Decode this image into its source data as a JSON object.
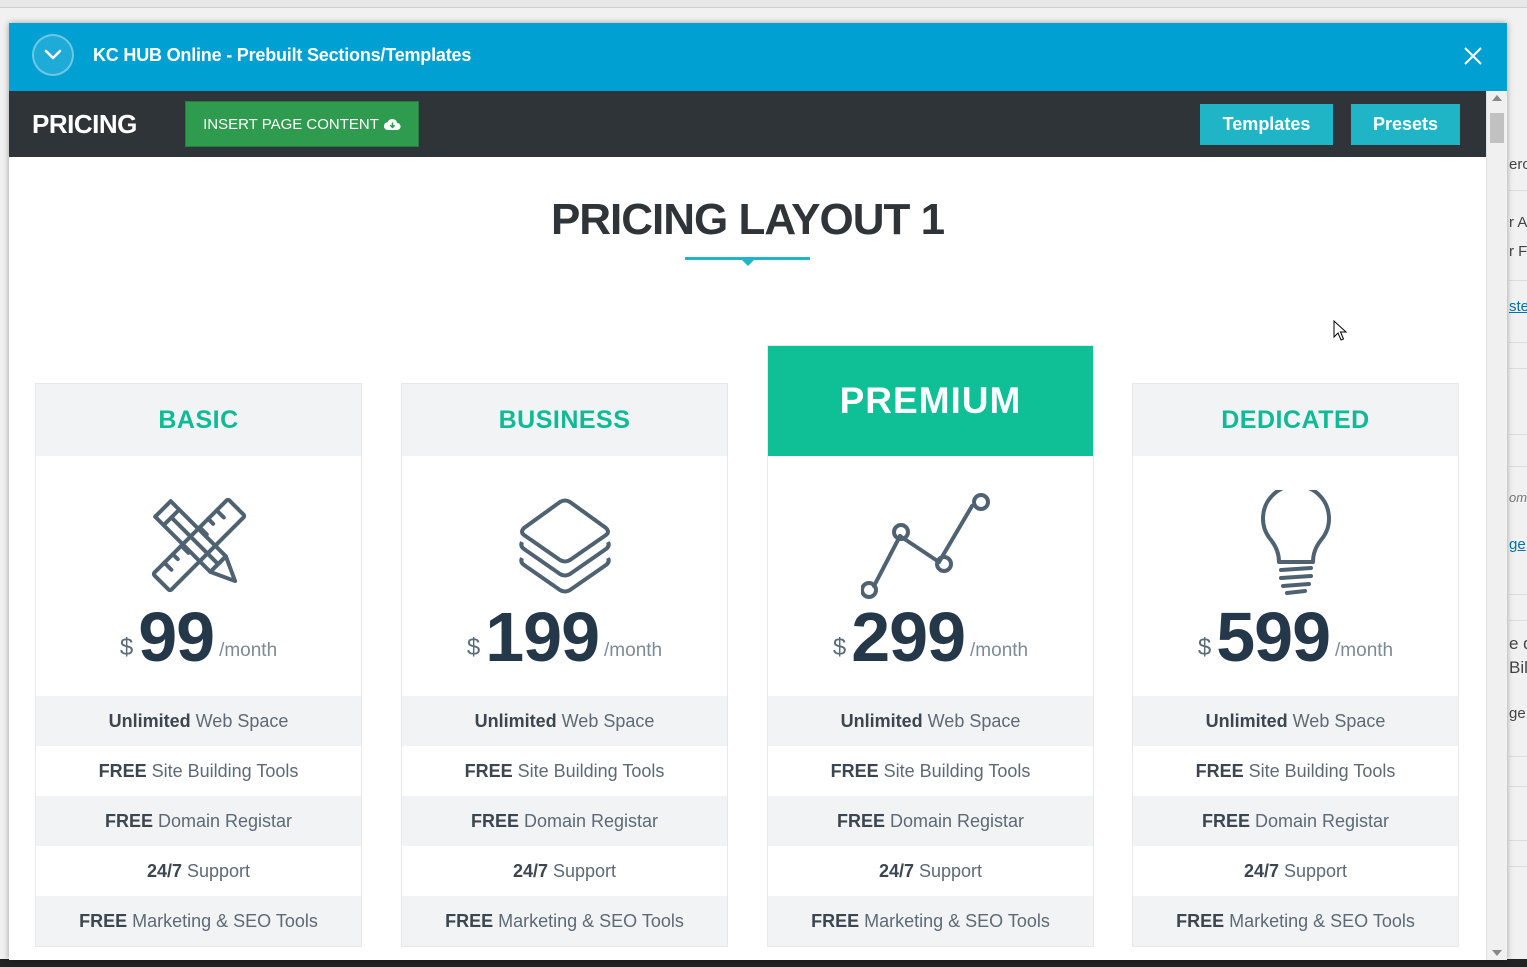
{
  "background": {
    "fragments": [
      "erc",
      "r A",
      "r Fo",
      "ste",
      "om",
      "ge",
      "e d",
      "Bil",
      "ge"
    ]
  },
  "modal": {
    "title": "KC HUB Online - Prebuilt Sections/Templates",
    "collapse_icon": "chevron-down-icon",
    "close_icon": "close-icon",
    "header_color": "#00a0d2"
  },
  "toolbar": {
    "section_name": "PRICING",
    "insert_label": "INSERT PAGE CONTENT",
    "insert_icon": "cloud-download-icon",
    "templates_label": "Templates",
    "presets_label": "Presets"
  },
  "content": {
    "title": "PRICING LAYOUT 1",
    "accent_color": "#1fb5c6",
    "plans": [
      {
        "name": "BASIC",
        "icon": "pencil-ruler-icon",
        "currency": "$",
        "amount": "99",
        "period": "/month",
        "featured": false,
        "features": [
          {
            "strong": "Unlimited",
            "text": "Web Space"
          },
          {
            "strong": "FREE",
            "text": "Site Building Tools"
          },
          {
            "strong": "FREE",
            "text": "Domain Registar"
          },
          {
            "strong": "24/7",
            "text": "Support"
          },
          {
            "strong": "FREE",
            "text": "Marketing & SEO Tools"
          }
        ]
      },
      {
        "name": "BUSINESS",
        "icon": "layers-icon",
        "currency": "$",
        "amount": "199",
        "period": "/month",
        "featured": false,
        "features": [
          {
            "strong": "Unlimited",
            "text": "Web Space"
          },
          {
            "strong": "FREE",
            "text": "Site Building Tools"
          },
          {
            "strong": "FREE",
            "text": "Domain Registar"
          },
          {
            "strong": "24/7",
            "text": "Support"
          },
          {
            "strong": "FREE",
            "text": "Marketing & SEO Tools"
          }
        ]
      },
      {
        "name": "PREMIUM",
        "icon": "line-graph-icon",
        "currency": "$",
        "amount": "299",
        "period": "/month",
        "featured": true,
        "features": [
          {
            "strong": "Unlimited",
            "text": "Web Space"
          },
          {
            "strong": "FREE",
            "text": "Site Building Tools"
          },
          {
            "strong": "FREE",
            "text": "Domain Registar"
          },
          {
            "strong": "24/7",
            "text": "Support"
          },
          {
            "strong": "FREE",
            "text": "Marketing & SEO Tools"
          }
        ]
      },
      {
        "name": "DEDICATED",
        "icon": "lightbulb-icon",
        "currency": "$",
        "amount": "599",
        "period": "/month",
        "featured": false,
        "features": [
          {
            "strong": "Unlimited",
            "text": "Web Space"
          },
          {
            "strong": "FREE",
            "text": "Site Building Tools"
          },
          {
            "strong": "FREE",
            "text": "Domain Registar"
          },
          {
            "strong": "24/7",
            "text": "Support"
          },
          {
            "strong": "FREE",
            "text": "Marketing & SEO Tools"
          }
        ]
      }
    ]
  }
}
